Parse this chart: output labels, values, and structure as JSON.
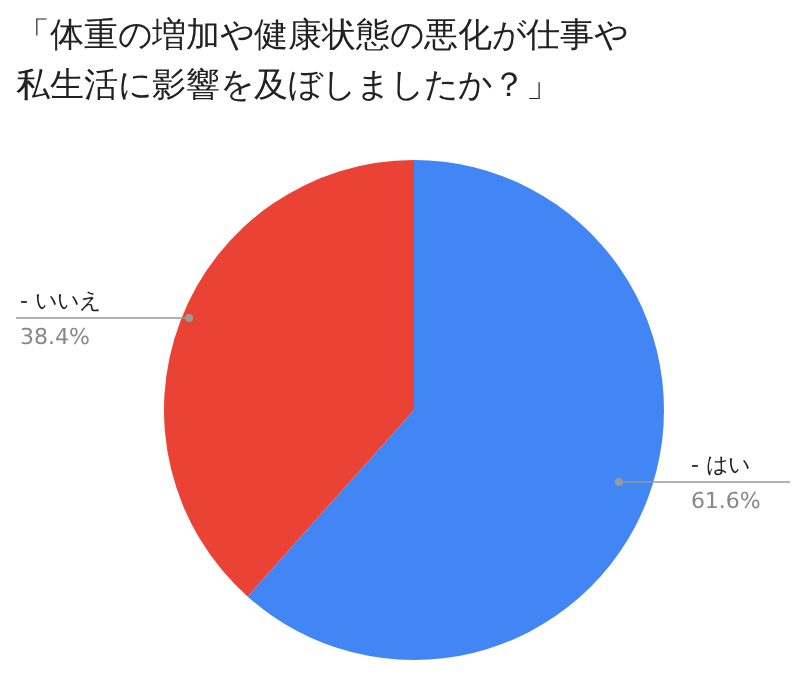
{
  "chart_data": {
    "type": "pie",
    "title": "「体重の増加や健康状態の悪化が仕事や私生活に影響を及ぼしましたか？」",
    "categories": [
      "- はい",
      "- いいえ"
    ],
    "values": [
      61.6,
      38.4
    ],
    "colors": [
      "#4285f4",
      "#ea4335"
    ],
    "value_labels": [
      "61.6%",
      "38.4%"
    ]
  }
}
